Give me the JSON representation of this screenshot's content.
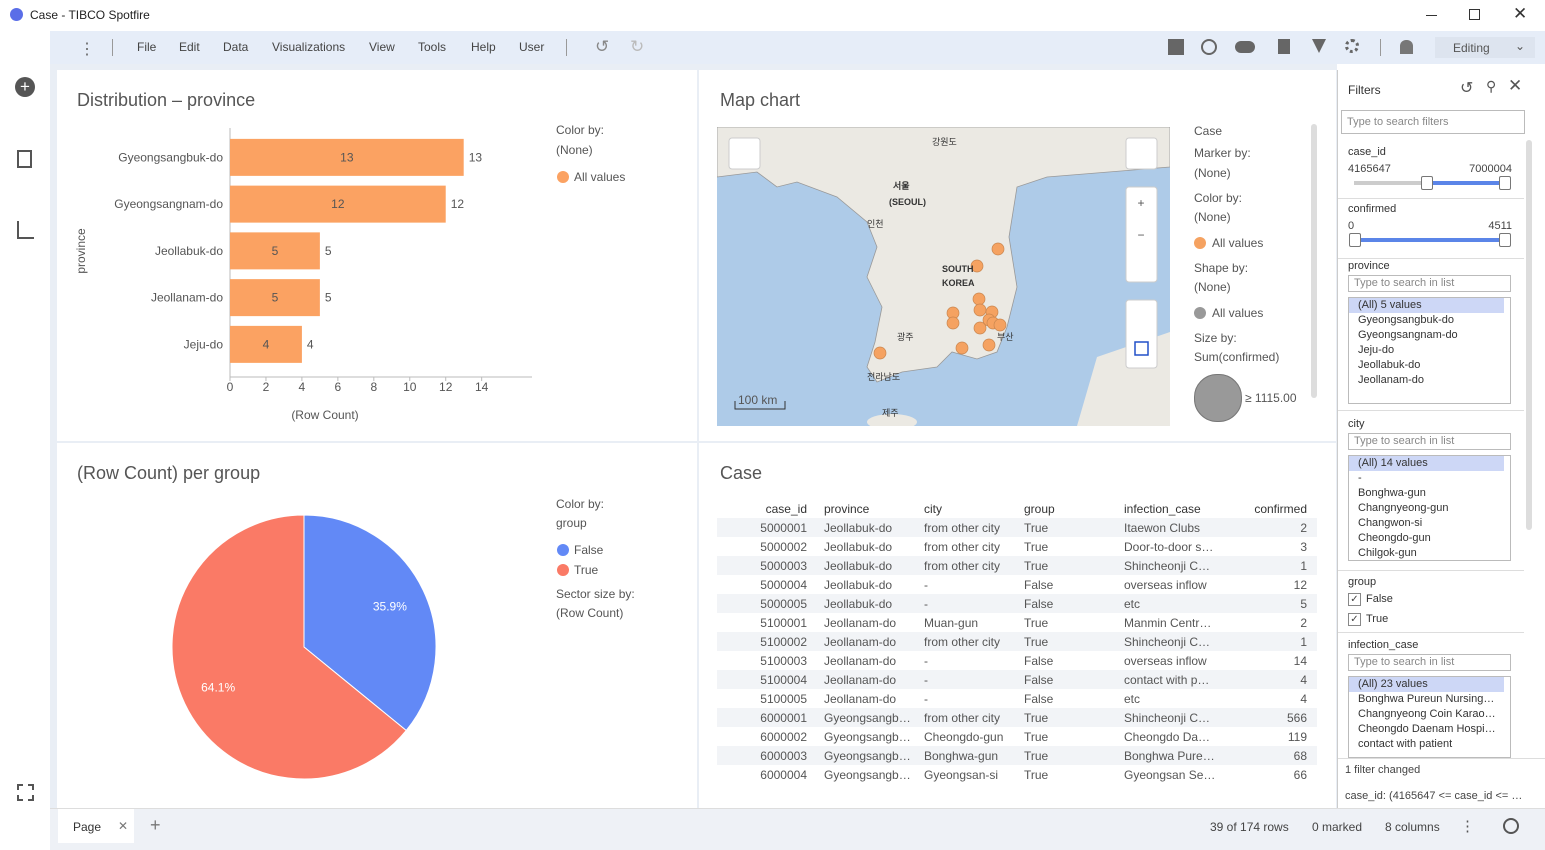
{
  "window": {
    "title": "Case - TIBCO Spotfire"
  },
  "menu": {
    "items": [
      "File",
      "Edit",
      "Data",
      "Visualizations",
      "View",
      "Tools",
      "Help",
      "User"
    ],
    "mode": "Editing"
  },
  "chart_data": [
    {
      "type": "bar",
      "orientation": "horizontal",
      "title": "Distribution – province",
      "categories": [
        "Gyeongsangbuk-do",
        "Gyeongsangnam-do",
        "Jeollabuk-do",
        "Jeollanam-do",
        "Jeju-do"
      ],
      "values": [
        13,
        12,
        5,
        5,
        4
      ],
      "color": "#fba262",
      "xlim": [
        0,
        16.8
      ],
      "xticks": [
        0,
        2,
        4,
        6,
        8,
        10,
        12,
        14
      ],
      "x_label": "(Row Count)",
      "y_label": "province",
      "legend": {
        "color_by": "Color by:",
        "color_value": "(None)",
        "entry": "All values"
      }
    },
    {
      "type": "pie",
      "title": "(Row Count) per group",
      "categories": [
        "False",
        "True"
      ],
      "values": [
        35.9,
        64.1
      ],
      "value_labels": [
        "35.9%",
        "64.1%"
      ],
      "colors": [
        "#6289f6",
        "#fa7a66"
      ],
      "legend": {
        "color_by": "Color by:",
        "color_value": "group",
        "size_by": "Sector size by:",
        "size_value": "(Row Count)"
      }
    }
  ],
  "map": {
    "title": "Map chart",
    "scale": "100 km",
    "places": [
      "서울",
      "(SEOUL)",
      "강원도",
      "인천",
      "SOUTH",
      "KOREA",
      "광주",
      "부산",
      "전라남도",
      "제주"
    ],
    "legend": [
      "Case",
      "Marker by:",
      "(None)",
      "Color by:",
      "(None)",
      "All values",
      "Shape by:",
      "(None)",
      "All values",
      "Size by:",
      "Sum(confirmed)"
    ],
    "size_label": "≥ 1115.00"
  },
  "table": {
    "title": "Case",
    "columns": [
      "case_id",
      "province",
      "city",
      "group",
      "infection_case",
      "confirmed"
    ],
    "rows": [
      [
        5000001,
        "Jeollabuk-do",
        "from other city",
        "True",
        "Itaewon Clubs",
        2
      ],
      [
        5000002,
        "Jeollabuk-do",
        "from other city",
        "True",
        "Door-to-door s…",
        3
      ],
      [
        5000003,
        "Jeollabuk-do",
        "from other city",
        "True",
        "Shincheonji C…",
        1
      ],
      [
        5000004,
        "Jeollabuk-do",
        "-",
        "False",
        "overseas inflow",
        12
      ],
      [
        5000005,
        "Jeollabuk-do",
        "-",
        "False",
        "etc",
        5
      ],
      [
        5100001,
        "Jeollanam-do",
        "Muan-gun",
        "True",
        "Manmin Centr…",
        2
      ],
      [
        5100002,
        "Jeollanam-do",
        "from other city",
        "True",
        "Shincheonji C…",
        1
      ],
      [
        5100003,
        "Jeollanam-do",
        "-",
        "False",
        "overseas inflow",
        14
      ],
      [
        5100004,
        "Jeollanam-do",
        "-",
        "False",
        "contact with p…",
        4
      ],
      [
        5100005,
        "Jeollanam-do",
        "-",
        "False",
        "etc",
        4
      ],
      [
        6000001,
        "Gyeongsangb…",
        "from other city",
        "True",
        "Shincheonji C…",
        566
      ],
      [
        6000002,
        "Gyeongsangb…",
        "Cheongdo-gun",
        "True",
        "Cheongdo Da…",
        119
      ],
      [
        6000003,
        "Gyeongsangb…",
        "Bonghwa-gun",
        "True",
        "Bonghwa Pure…",
        68
      ],
      [
        6000004,
        "Gyeongsangb…",
        "Gyeongsan-si",
        "True",
        "Gyeongsan Se…",
        66
      ]
    ]
  },
  "filters": {
    "title": "Filters",
    "search": "Type to search filters",
    "case_id": {
      "name": "case_id",
      "min": "4165647",
      "max": "7000004"
    },
    "confirmed": {
      "name": "confirmed",
      "min": "0",
      "max": "4511"
    },
    "province": {
      "name": "province",
      "search": "Type to search in list",
      "items": [
        "(All) 5 values",
        "Gyeongsangbuk-do",
        "Gyeongsangnam-do",
        "Jeju-do",
        "Jeollabuk-do",
        "Jeollanam-do"
      ]
    },
    "city": {
      "name": "city",
      "search": "Type to search in list",
      "items": [
        "(All) 14 values",
        "-",
        "Bonghwa-gun",
        "Changnyeong-gun",
        "Changwon-si",
        "Cheongdo-gun",
        "Chilgok-gun"
      ]
    },
    "group": {
      "name": "group",
      "items": [
        "False",
        "True"
      ]
    },
    "infection_case": {
      "name": "infection_case",
      "search": "Type to search in list",
      "items": [
        "(All) 23 values",
        "Bonghwa Pureun Nursing…",
        "Changnyeong Coin Karao…",
        "Cheongdo Daenam Hospi…",
        "contact with patient"
      ]
    },
    "changed": "1 filter changed",
    "summary": "case_id: (4165647 <= case_id <= …"
  },
  "status": {
    "page": "Page",
    "rows": "39 of 174 rows",
    "marked": "0 marked",
    "columns": "8 columns"
  }
}
